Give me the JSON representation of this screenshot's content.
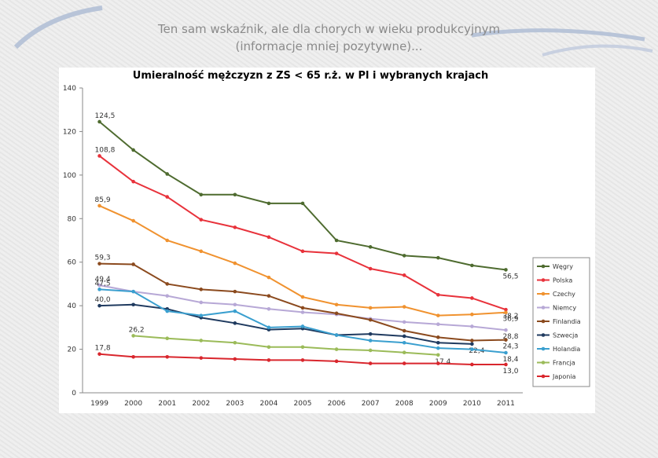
{
  "header": {
    "title": "Ten sam wskaźnik, ale dla chorych w wieku produkcyjnym",
    "subtitle": "(informacje mniej pozytywne)..."
  },
  "chart_data": {
    "type": "line",
    "title": "Umieralność mężczyzn z ZS < 65 r.ż. w Pl i wybranych krajach",
    "categories": [
      "1999",
      "2000",
      "2001",
      "2002",
      "2003",
      "2004",
      "2005",
      "2006",
      "2007",
      "2008",
      "2009",
      "2010",
      "2011"
    ],
    "ylim": [
      0,
      140
    ],
    "yticks": [
      0,
      20,
      40,
      60,
      80,
      100,
      120,
      140
    ],
    "legend": "right",
    "series": [
      {
        "name": "Węgry",
        "color": "#4e6b2f",
        "values": [
          124.5,
          111.5,
          100.5,
          91,
          91,
          87,
          87,
          70,
          67,
          63,
          62,
          58.5,
          56.5
        ],
        "value_labels": [
          "124,5",
          null,
          null,
          null,
          null,
          null,
          null,
          null,
          null,
          null,
          null,
          null,
          "56,5"
        ]
      },
      {
        "name": "Polska",
        "color": "#e8323b",
        "values": [
          108.8,
          97,
          90,
          79.5,
          76,
          71.5,
          65,
          64,
          57,
          54,
          45,
          43.5,
          38.2
        ],
        "value_labels": [
          "108,8",
          null,
          null,
          null,
          null,
          null,
          null,
          null,
          null,
          null,
          null,
          null,
          "38,2"
        ]
      },
      {
        "name": "Czechy",
        "color": "#f0922f",
        "values": [
          85.9,
          79,
          70,
          65,
          59.5,
          53,
          44,
          40.5,
          39,
          39.5,
          35.5,
          36,
          36.9
        ],
        "value_labels": [
          "85,9",
          null,
          null,
          null,
          null,
          null,
          null,
          null,
          null,
          null,
          null,
          null,
          "36,9"
        ]
      },
      {
        "name": "Niemcy",
        "color": "#b7a8d6",
        "values": [
          49.4,
          46.5,
          44.5,
          41.5,
          40.5,
          38.5,
          37,
          36,
          34,
          32.5,
          31.5,
          30.5,
          28.8
        ],
        "value_labels": [
          "49,4",
          null,
          null,
          null,
          null,
          null,
          null,
          null,
          null,
          null,
          null,
          null,
          "28,8"
        ]
      },
      {
        "name": "Finlandia",
        "color": "#8b4a1e",
        "values": [
          59.3,
          59,
          50,
          47.5,
          46.5,
          44.5,
          39,
          36.5,
          33.5,
          28.5,
          25.5,
          24,
          24.3
        ],
        "value_labels": [
          "59,3",
          null,
          null,
          null,
          null,
          null,
          null,
          null,
          null,
          null,
          null,
          null,
          "24,3"
        ]
      },
      {
        "name": "Szwecja",
        "color": "#1f3a5f",
        "values": [
          40,
          40.5,
          38.5,
          34.5,
          32,
          29,
          29.5,
          26.5,
          27,
          26,
          23,
          22.4,
          null
        ],
        "value_labels": [
          "40,0",
          null,
          null,
          null,
          null,
          null,
          null,
          null,
          null,
          null,
          null,
          "22,4",
          null
        ]
      },
      {
        "name": "Holandia",
        "color": "#3a9fcf",
        "values": [
          47.5,
          46.5,
          37.5,
          35.5,
          37.5,
          30,
          30.5,
          26.5,
          24,
          23,
          20.5,
          20,
          18.4
        ],
        "value_labels": [
          "47,5",
          null,
          null,
          null,
          null,
          null,
          null,
          null,
          null,
          null,
          null,
          null,
          "18,4"
        ]
      },
      {
        "name": "Francja",
        "color": "#9bbb59",
        "values": [
          null,
          26.2,
          25,
          24,
          23,
          21,
          21,
          20,
          19.5,
          18.5,
          17.4,
          null,
          null
        ],
        "value_labels": [
          null,
          "26,2",
          null,
          null,
          null,
          null,
          null,
          null,
          null,
          null,
          "17,4",
          null,
          null
        ]
      },
      {
        "name": "Japonia",
        "color": "#d9262d",
        "values": [
          17.8,
          16.5,
          16.5,
          16,
          15.5,
          15,
          15,
          14.5,
          13.5,
          13.5,
          13.5,
          13,
          13.0
        ],
        "value_labels": [
          "17,8",
          null,
          null,
          null,
          null,
          null,
          null,
          null,
          null,
          null,
          null,
          null,
          "13,0"
        ]
      }
    ]
  }
}
